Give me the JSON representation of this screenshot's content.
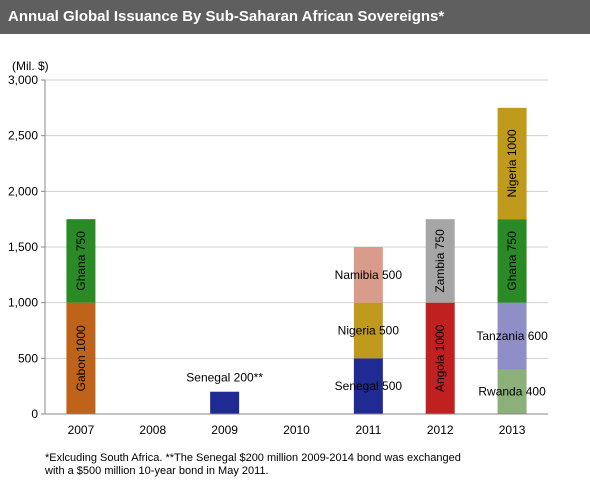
{
  "header": {
    "title": "Annual Global Issuance  By  Sub-Saharan African Sovereigns*"
  },
  "chart_data": {
    "type": "bar",
    "stacked": true,
    "unit_label": "(Mil. $)",
    "title": "",
    "xlabel": "",
    "ylabel": "",
    "ylim": [
      0,
      3000
    ],
    "yticks": [
      0,
      500,
      1000,
      1500,
      2000,
      2500,
      3000
    ],
    "ytick_labels": [
      "0",
      "500",
      "1,000",
      "1,500",
      "2,000",
      "2,500",
      "3,000"
    ],
    "grid": true,
    "categories": [
      "2007",
      "2008",
      "2009",
      "2010",
      "2011",
      "2012",
      "2013"
    ],
    "stacks": [
      {
        "category": "2007",
        "segments": [
          {
            "label": "Gabon 1000",
            "value": 1000,
            "color": "#c0631a",
            "vertical": true
          },
          {
            "label": "Ghana 750",
            "value": 750,
            "color": "#2a8a25",
            "vertical": true
          }
        ]
      },
      {
        "category": "2008",
        "segments": []
      },
      {
        "category": "2009",
        "segments": [
          {
            "label": "Senegal 200**",
            "value": 200,
            "color": "#1f2a92",
            "vertical": false,
            "outside": true
          }
        ]
      },
      {
        "category": "2010",
        "segments": []
      },
      {
        "category": "2011",
        "segments": [
          {
            "label": "Senegal 500",
            "value": 500,
            "color": "#1f2a92",
            "vertical": false
          },
          {
            "label": "Nigeria 500",
            "value": 500,
            "color": "#bf9a1c",
            "vertical": false
          },
          {
            "label": "Namibia 500",
            "value": 500,
            "color": "#d99c8a",
            "vertical": false
          }
        ]
      },
      {
        "category": "2012",
        "segments": [
          {
            "label": "Angola 1000",
            "value": 1000,
            "color": "#c02020",
            "vertical": true
          },
          {
            "label": "Zambia 750",
            "value": 750,
            "color": "#a6a6a6",
            "vertical": true
          }
        ]
      },
      {
        "category": "2013",
        "segments": [
          {
            "label": "Rwanda 400",
            "value": 400,
            "color": "#8cb07a",
            "vertical": false
          },
          {
            "label": "Tanzania 600",
            "value": 600,
            "color": "#8f8ec6",
            "vertical": false
          },
          {
            "label": "Ghana 750",
            "value": 750,
            "color": "#2a8a25",
            "vertical": true
          },
          {
            "label": "Nigeria 1000",
            "value": 1000,
            "color": "#bf9a1c",
            "vertical": true
          }
        ]
      }
    ]
  },
  "footnote": {
    "line1": "*Exlcuding South Africa.   **The Senegal $200 million 2009-2014 bond was exchanged",
    "line2": "with a $500 million  10-year bond in May 2011."
  }
}
